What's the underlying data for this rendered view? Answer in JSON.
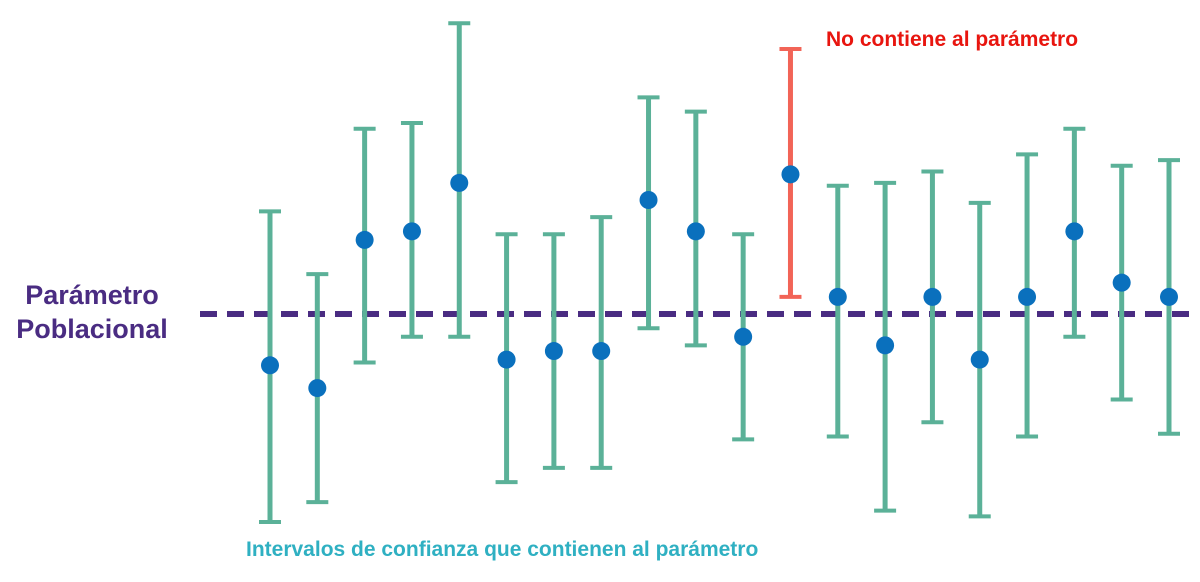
{
  "parameter_label": {
    "line1": "Parámetro",
    "line2": "Poblacional"
  },
  "annotations": {
    "miss": "No contiene al parámetro",
    "hit": "Intervalos de confianza que contienen al parámetro"
  },
  "colors": {
    "parameter": "#4a2c82",
    "interval_hit": "#5bb198",
    "interval_miss": "#f26457",
    "point": "#0a70bd",
    "miss_text": "#e8150f",
    "hit_text": "#2fb0c2"
  },
  "chart_data": {
    "type": "scatter",
    "parameter_value": 0,
    "contains_parameter_color_key": "interval_hit",
    "intervals": [
      {
        "estimate": -0.18,
        "lower": -0.73,
        "upper": 0.36,
        "contains": true
      },
      {
        "estimate": -0.26,
        "lower": -0.66,
        "upper": 0.14,
        "contains": true
      },
      {
        "estimate": 0.26,
        "lower": -0.17,
        "upper": 0.65,
        "contains": true
      },
      {
        "estimate": 0.29,
        "lower": -0.08,
        "upper": 0.67,
        "contains": true
      },
      {
        "estimate": 0.46,
        "lower": -0.08,
        "upper": 1.02,
        "contains": true
      },
      {
        "estimate": -0.16,
        "lower": -0.59,
        "upper": 0.28,
        "contains": true
      },
      {
        "estimate": -0.13,
        "lower": -0.54,
        "upper": 0.28,
        "contains": true
      },
      {
        "estimate": -0.13,
        "lower": -0.54,
        "upper": 0.34,
        "contains": true
      },
      {
        "estimate": 0.4,
        "lower": -0.05,
        "upper": 0.76,
        "contains": true
      },
      {
        "estimate": 0.29,
        "lower": -0.11,
        "upper": 0.71,
        "contains": true
      },
      {
        "estimate": -0.08,
        "lower": -0.44,
        "upper": 0.28,
        "contains": true
      },
      {
        "estimate": 0.49,
        "lower": 0.06,
        "upper": 0.93,
        "contains": false
      },
      {
        "estimate": 0.06,
        "lower": -0.43,
        "upper": 0.45,
        "contains": true
      },
      {
        "estimate": -0.11,
        "lower": -0.69,
        "upper": 0.46,
        "contains": true
      },
      {
        "estimate": 0.06,
        "lower": -0.38,
        "upper": 0.5,
        "contains": true
      },
      {
        "estimate": -0.16,
        "lower": -0.71,
        "upper": 0.39,
        "contains": true
      },
      {
        "estimate": 0.06,
        "lower": -0.43,
        "upper": 0.56,
        "contains": true
      },
      {
        "estimate": 0.29,
        "lower": -0.08,
        "upper": 0.65,
        "contains": true
      },
      {
        "estimate": 0.11,
        "lower": -0.3,
        "upper": 0.52,
        "contains": true
      },
      {
        "estimate": 0.06,
        "lower": -0.42,
        "upper": 0.54,
        "contains": true
      }
    ]
  }
}
